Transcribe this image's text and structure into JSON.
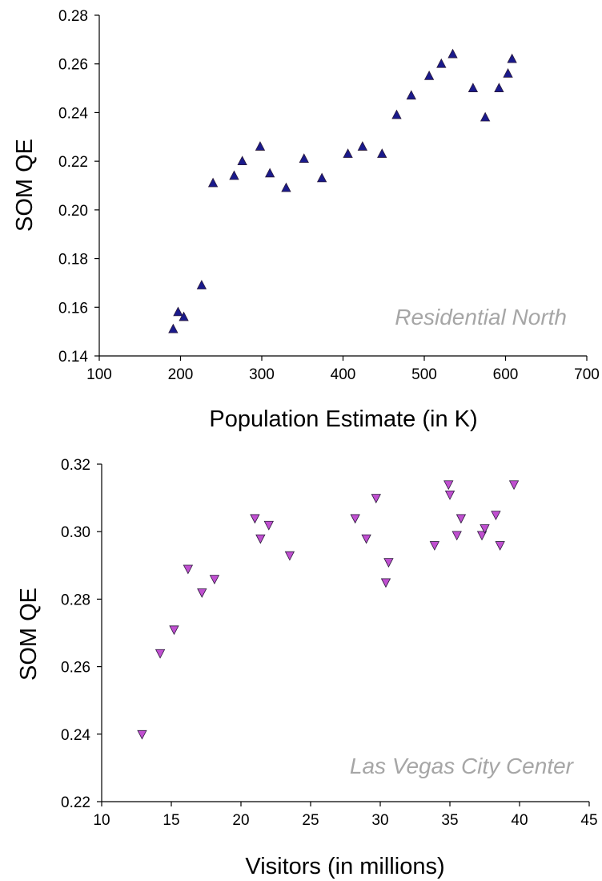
{
  "chart_data": [
    {
      "type": "scatter",
      "xlabel": "Population Estimate (in K)",
      "ylabel": "SOM QE",
      "annotation": "Residential North",
      "xlim": [
        100,
        700
      ],
      "ylim": [
        0.14,
        0.28
      ],
      "xticks": [
        "100",
        "200",
        "300",
        "400",
        "500",
        "600",
        "700"
      ],
      "yticks": [
        "0.14",
        "0.16",
        "0.18",
        "0.20",
        "0.22",
        "0.24",
        "0.26",
        "0.28"
      ],
      "marker": "triangle-up",
      "color": "#1a1a8c",
      "grid": false,
      "points": [
        {
          "x": 191,
          "y": 0.151
        },
        {
          "x": 197,
          "y": 0.158
        },
        {
          "x": 204,
          "y": 0.156
        },
        {
          "x": 226,
          "y": 0.169
        },
        {
          "x": 240,
          "y": 0.211
        },
        {
          "x": 266,
          "y": 0.214
        },
        {
          "x": 276,
          "y": 0.22
        },
        {
          "x": 298,
          "y": 0.226
        },
        {
          "x": 310,
          "y": 0.215
        },
        {
          "x": 330,
          "y": 0.209
        },
        {
          "x": 352,
          "y": 0.221
        },
        {
          "x": 374,
          "y": 0.213
        },
        {
          "x": 406,
          "y": 0.223
        },
        {
          "x": 424,
          "y": 0.226
        },
        {
          "x": 448,
          "y": 0.223
        },
        {
          "x": 466,
          "y": 0.239
        },
        {
          "x": 484,
          "y": 0.247
        },
        {
          "x": 506,
          "y": 0.255
        },
        {
          "x": 521,
          "y": 0.26
        },
        {
          "x": 535,
          "y": 0.264
        },
        {
          "x": 560,
          "y": 0.25
        },
        {
          "x": 575,
          "y": 0.238
        },
        {
          "x": 592,
          "y": 0.25
        },
        {
          "x": 603,
          "y": 0.256
        },
        {
          "x": 608,
          "y": 0.262
        }
      ]
    },
    {
      "type": "scatter",
      "xlabel": "Visitors (in millions)",
      "ylabel": "SOM QE",
      "annotation": "Las Vegas City Center",
      "xlim": [
        10,
        45
      ],
      "ylim": [
        0.22,
        0.32
      ],
      "xticks": [
        "10",
        "15",
        "20",
        "25",
        "30",
        "35",
        "40",
        "45"
      ],
      "yticks": [
        "0.22",
        "0.24",
        "0.26",
        "0.28",
        "0.30",
        "0.32"
      ],
      "marker": "triangle-down",
      "color": "#c04fd0",
      "grid": false,
      "points": [
        {
          "x": 12.9,
          "y": 0.24
        },
        {
          "x": 14.2,
          "y": 0.264
        },
        {
          "x": 15.2,
          "y": 0.271
        },
        {
          "x": 16.2,
          "y": 0.289
        },
        {
          "x": 17.2,
          "y": 0.282
        },
        {
          "x": 18.1,
          "y": 0.286
        },
        {
          "x": 21.0,
          "y": 0.304
        },
        {
          "x": 21.4,
          "y": 0.298
        },
        {
          "x": 22.0,
          "y": 0.302
        },
        {
          "x": 23.5,
          "y": 0.293
        },
        {
          "x": 28.2,
          "y": 0.304
        },
        {
          "x": 29.0,
          "y": 0.298
        },
        {
          "x": 29.7,
          "y": 0.31
        },
        {
          "x": 30.4,
          "y": 0.285
        },
        {
          "x": 30.6,
          "y": 0.291
        },
        {
          "x": 33.9,
          "y": 0.296
        },
        {
          "x": 34.9,
          "y": 0.314
        },
        {
          "x": 35.0,
          "y": 0.311
        },
        {
          "x": 35.5,
          "y": 0.299
        },
        {
          "x": 35.8,
          "y": 0.304
        },
        {
          "x": 37.3,
          "y": 0.299
        },
        {
          "x": 37.5,
          "y": 0.301
        },
        {
          "x": 38.3,
          "y": 0.305
        },
        {
          "x": 38.6,
          "y": 0.296
        },
        {
          "x": 39.6,
          "y": 0.314
        }
      ]
    }
  ]
}
